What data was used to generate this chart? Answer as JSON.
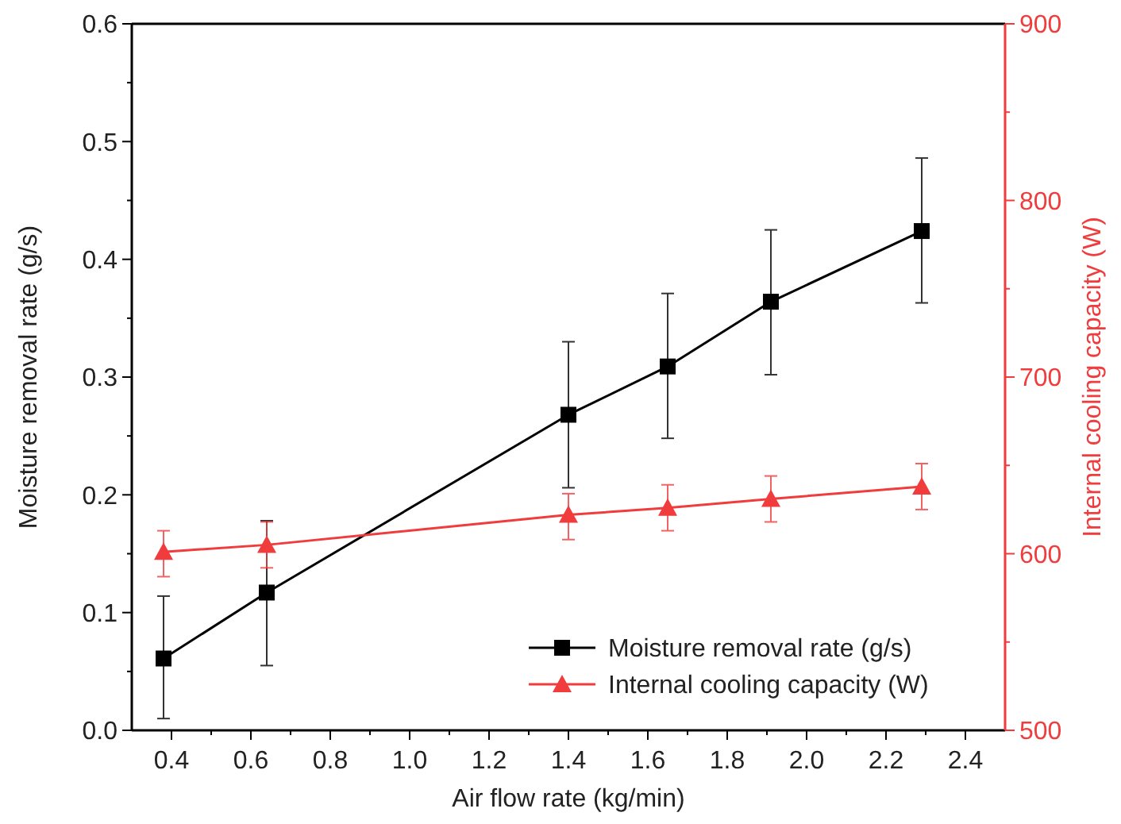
{
  "chart_data": {
    "type": "line",
    "xlabel": "Air flow rate (kg/min)",
    "ylabel": "Moisture removal rate (g/s)",
    "y2label": "Internal cooling capacity (W)",
    "x": [
      0.38,
      0.64,
      1.4,
      1.65,
      1.91,
      2.29
    ],
    "xlim": [
      0.3,
      2.5
    ],
    "xticks": [
      0.4,
      {
        "value": 0.5,
        "label": null
      },
      0.6,
      {
        "value": 0.7,
        "label": null
      },
      0.8,
      {
        "value": 0.9,
        "label": null
      },
      "1.0",
      {
        "value": 1.1,
        "label": null
      },
      1.2,
      {
        "value": 1.3,
        "label": null
      },
      1.4,
      {
        "value": 1.5,
        "label": null
      },
      1.6,
      {
        "value": 1.7,
        "label": null
      },
      1.8,
      {
        "value": 1.9,
        "label": null
      },
      "2.0",
      {
        "value": 2.1,
        "label": null
      },
      2.2,
      {
        "value": 2.3,
        "label": null
      },
      2.4
    ],
    "ylim": [
      0,
      0.6
    ],
    "yticks": [
      {
        "value": 0,
        "label": "0.0"
      },
      {
        "value": 0.05,
        "label": null
      },
      0.1,
      {
        "value": 0.15,
        "label": null
      },
      0.2,
      {
        "value": 0.25,
        "label": null
      },
      0.3,
      {
        "value": 0.35,
        "label": null
      },
      0.4,
      {
        "value": 0.45,
        "label": null
      },
      0.5,
      {
        "value": 0.55,
        "label": null
      },
      0.6
    ],
    "y2lim": [
      500,
      900
    ],
    "y2ticks": [
      500,
      {
        "value": 550,
        "label": null
      },
      600,
      {
        "value": 650,
        "label": null
      },
      700,
      {
        "value": 750,
        "label": null
      },
      800,
      {
        "value": 850,
        "label": null
      },
      900
    ],
    "series": [
      {
        "name": "Moisture removal rate (g/s)",
        "color": "#000000",
        "marker": "square",
        "values": [
          0.061,
          0.117,
          0.268,
          0.309,
          0.364,
          0.424
        ],
        "errors": [
          [
            0.01,
            0.114
          ],
          [
            0.055,
            0.178
          ],
          [
            0.206,
            0.33
          ],
          [
            0.248,
            0.371
          ],
          [
            0.302,
            0.425
          ],
          [
            0.363,
            0.486
          ]
        ]
      },
      {
        "name": "Internal cooling capacity (W)",
        "color": "#f03c3c",
        "marker": "triangle",
        "axis": "y2",
        "values": [
          601,
          605,
          622,
          626,
          631,
          638
        ],
        "errors": [
          [
            587,
            613
          ],
          [
            592,
            618
          ],
          [
            608,
            634
          ],
          [
            613,
            639
          ],
          [
            618,
            644
          ],
          [
            625,
            651
          ]
        ]
      }
    ],
    "legend": "bottom right",
    "grid": false,
    "line_style": "solid"
  }
}
